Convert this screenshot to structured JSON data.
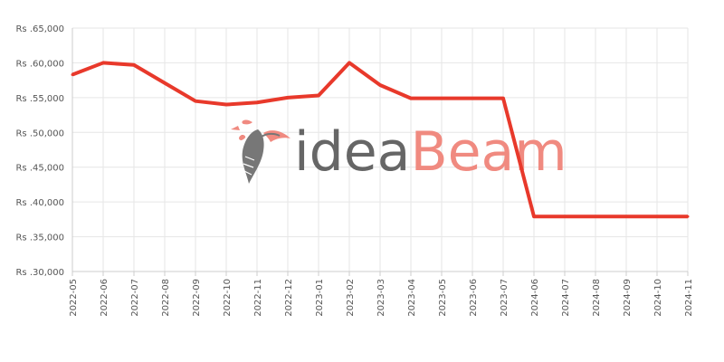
{
  "chart_data": {
    "type": "line",
    "title": "",
    "xlabel": "",
    "ylabel": "",
    "x": [
      "2022-05",
      "2022-06",
      "2022-07",
      "2022-08",
      "2022-09",
      "2022-10",
      "2022-11",
      "2022-12",
      "2023-01",
      "2023-02",
      "2023-03",
      "2023-04",
      "2023-05",
      "2023-06",
      "2023-07",
      "2024-06",
      "2024-07",
      "2024-08",
      "2024-09",
      "2024-10",
      "2024-11"
    ],
    "series": [
      {
        "color": "#e8392b",
        "values": [
          58300,
          60000,
          59700,
          57100,
          54500,
          54000,
          54300,
          55000,
          55300,
          60000,
          56800,
          54900,
          54900,
          54900,
          54900,
          37900,
          37900,
          37900,
          37900,
          37900,
          37900
        ]
      }
    ],
    "ylim": [
      30000,
      65000
    ],
    "yticks": [
      30000,
      35000,
      40000,
      45000,
      50000,
      55000,
      60000,
      65000
    ],
    "ytick_labels": [
      "Rs .30,000",
      "Rs .35,000",
      "Rs .40,000",
      "Rs .45,000",
      "Rs .50,000",
      "Rs .55,000",
      "Rs .60,000",
      "Rs .65,000"
    ],
    "grid": true,
    "legend": "none",
    "watermark": {
      "text_part1": "idea",
      "text_part2": "Beam",
      "icon": "hummingbird-icon",
      "color_part1": "#666666",
      "color_part2": "#f08a80"
    }
  }
}
